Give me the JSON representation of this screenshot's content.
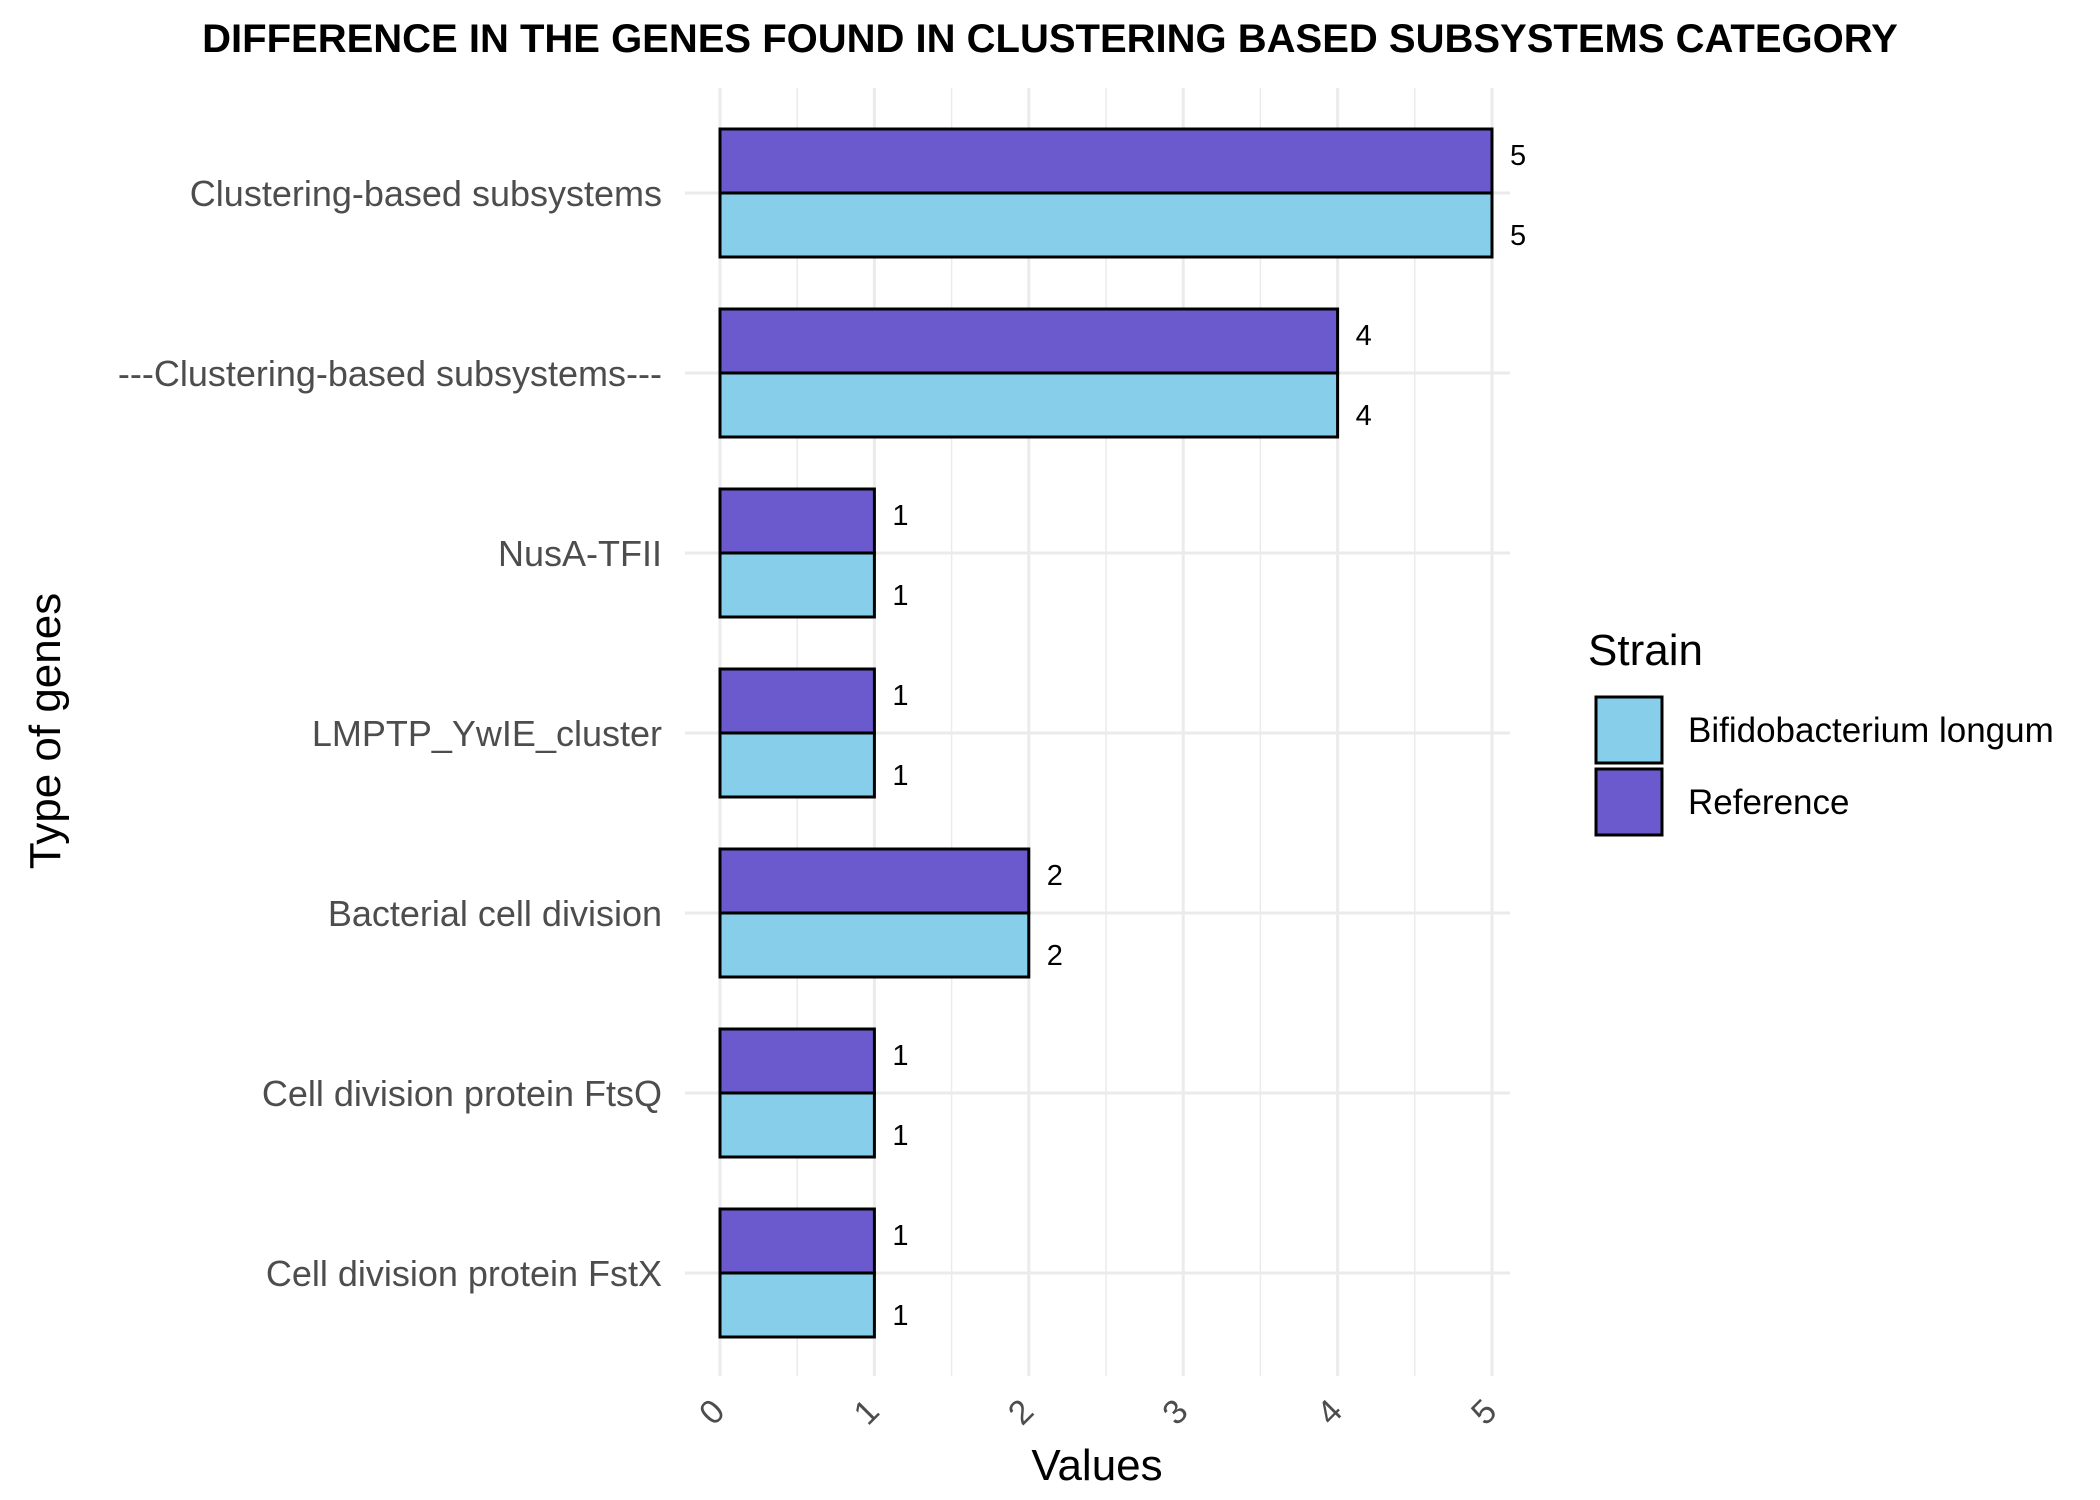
{
  "chart_data": {
    "type": "bar",
    "orientation": "horizontal",
    "title": "DIFFERENCE IN THE GENES FOUND IN CLUSTERING BASED SUBSYSTEMS CATEGORY",
    "xlabel": "Values",
    "ylabel": "Type of genes",
    "categories": [
      "Clustering-based subsystems",
      "---Clustering-based subsystems---",
      "NusA-TFII",
      "LMPTP_YwIE_cluster",
      "Bacterial cell division",
      "Cell division protein FtsQ",
      "Cell division protein FstX"
    ],
    "series": [
      {
        "name": "Reference",
        "color": "#6a5acd",
        "values": [
          5,
          4,
          1,
          1,
          2,
          1,
          1
        ]
      },
      {
        "name": "Bifidobacterium longum",
        "color": "#87ceeb",
        "values": [
          5,
          4,
          1,
          1,
          2,
          1,
          1
        ]
      }
    ],
    "xticks": [
      "0",
      "1",
      "2",
      "3",
      "4",
      "5"
    ],
    "xlim": [
      0,
      5
    ],
    "grid": true,
    "tick_label_rotation": "diagonal",
    "legend": {
      "title": "Strain",
      "placement": "right",
      "entries": [
        {
          "label": "Bifidobacterium longum",
          "color": "#87ceeb"
        },
        {
          "label": "Reference",
          "color": "#6a5acd"
        }
      ]
    }
  }
}
